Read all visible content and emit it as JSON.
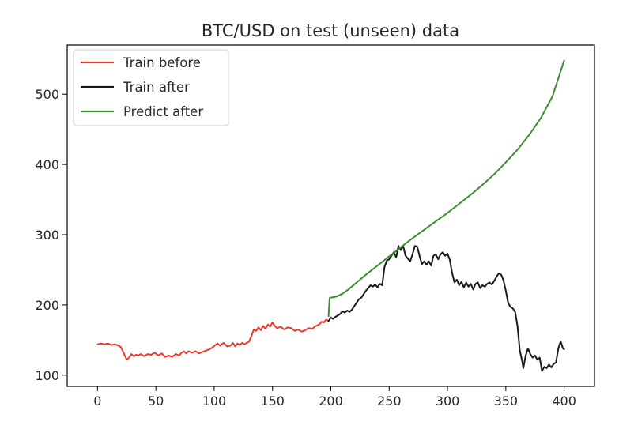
{
  "chart_data": {
    "type": "line",
    "title": "BTC/USD on test (unseen) data",
    "xlabel": "",
    "ylabel": "",
    "xlim": [
      -26,
      426
    ],
    "ylim": [
      84,
      570
    ],
    "grid": false,
    "legend_position": "top-left",
    "x_ticks": [
      0,
      50,
      100,
      150,
      200,
      250,
      300,
      350,
      400
    ],
    "y_ticks": [
      100,
      200,
      300,
      400,
      500
    ],
    "series": [
      {
        "name": "Train before",
        "color": "#e8392d",
        "points": [
          [
            0,
            144
          ],
          [
            3,
            145
          ],
          [
            6,
            144
          ],
          [
            9,
            145
          ],
          [
            12,
            143
          ],
          [
            15,
            144
          ],
          [
            18,
            142
          ],
          [
            20,
            140
          ],
          [
            22,
            133
          ],
          [
            24,
            126
          ],
          [
            25,
            122
          ],
          [
            27,
            125
          ],
          [
            29,
            130
          ],
          [
            31,
            127
          ],
          [
            33,
            129
          ],
          [
            35,
            128
          ],
          [
            37,
            130
          ],
          [
            40,
            127
          ],
          [
            43,
            130
          ],
          [
            46,
            129
          ],
          [
            49,
            132
          ],
          [
            52,
            128
          ],
          [
            55,
            131
          ],
          [
            58,
            126
          ],
          [
            61,
            128
          ],
          [
            64,
            126
          ],
          [
            67,
            130
          ],
          [
            70,
            128
          ],
          [
            72,
            132
          ],
          [
            74,
            134
          ],
          [
            76,
            131
          ],
          [
            78,
            134
          ],
          [
            81,
            132
          ],
          [
            84,
            134
          ],
          [
            87,
            131
          ],
          [
            90,
            133
          ],
          [
            93,
            135
          ],
          [
            96,
            137
          ],
          [
            99,
            140
          ],
          [
            101,
            143
          ],
          [
            103,
            145
          ],
          [
            105,
            142
          ],
          [
            108,
            146
          ],
          [
            111,
            141
          ],
          [
            114,
            142
          ],
          [
            116,
            146
          ],
          [
            118,
            141
          ],
          [
            120,
            145
          ],
          [
            122,
            143
          ],
          [
            124,
            146
          ],
          [
            126,
            144
          ],
          [
            128,
            146
          ],
          [
            130,
            148
          ],
          [
            132,
            156
          ],
          [
            134,
            165
          ],
          [
            136,
            163
          ],
          [
            138,
            168
          ],
          [
            140,
            164
          ],
          [
            142,
            170
          ],
          [
            144,
            166
          ],
          [
            146,
            172
          ],
          [
            148,
            169
          ],
          [
            150,
            175
          ],
          [
            152,
            170
          ],
          [
            154,
            167
          ],
          [
            157,
            169
          ],
          [
            160,
            165
          ],
          [
            163,
            168
          ],
          [
            166,
            167
          ],
          [
            169,
            163
          ],
          [
            172,
            165
          ],
          [
            175,
            162
          ],
          [
            178,
            164
          ],
          [
            181,
            167
          ],
          [
            184,
            166
          ],
          [
            187,
            170
          ],
          [
            190,
            172
          ],
          [
            192,
            176
          ],
          [
            194,
            175
          ],
          [
            196,
            179
          ],
          [
            198,
            177
          ]
        ]
      },
      {
        "name": "Train after",
        "color": "#1a1a1a",
        "points": [
          [
            198,
            177
          ],
          [
            200,
            182
          ],
          [
            202,
            180
          ],
          [
            204,
            183
          ],
          [
            206,
            185
          ],
          [
            208,
            187
          ],
          [
            210,
            191
          ],
          [
            212,
            189
          ],
          [
            214,
            192
          ],
          [
            216,
            190
          ],
          [
            218,
            193
          ],
          [
            220,
            198
          ],
          [
            222,
            203
          ],
          [
            224,
            208
          ],
          [
            226,
            210
          ],
          [
            228,
            215
          ],
          [
            230,
            220
          ],
          [
            232,
            224
          ],
          [
            234,
            228
          ],
          [
            236,
            226
          ],
          [
            238,
            229
          ],
          [
            240,
            225
          ],
          [
            242,
            230
          ],
          [
            244,
            228
          ],
          [
            246,
            254
          ],
          [
            248,
            263
          ],
          [
            250,
            265
          ],
          [
            252,
            270
          ],
          [
            254,
            275
          ],
          [
            256,
            268
          ],
          [
            258,
            284
          ],
          [
            260,
            278
          ],
          [
            262,
            284
          ],
          [
            264,
            270
          ],
          [
            266,
            266
          ],
          [
            268,
            262
          ],
          [
            270,
            272
          ],
          [
            272,
            284
          ],
          [
            274,
            283
          ],
          [
            276,
            270
          ],
          [
            278,
            258
          ],
          [
            280,
            262
          ],
          [
            282,
            257
          ],
          [
            284,
            262
          ],
          [
            286,
            256
          ],
          [
            288,
            270
          ],
          [
            290,
            272
          ],
          [
            292,
            265
          ],
          [
            294,
            272
          ],
          [
            296,
            275
          ],
          [
            298,
            270
          ],
          [
            300,
            273
          ],
          [
            302,
            264
          ],
          [
            304,
            245
          ],
          [
            306,
            232
          ],
          [
            308,
            236
          ],
          [
            310,
            228
          ],
          [
            312,
            233
          ],
          [
            314,
            225
          ],
          [
            316,
            232
          ],
          [
            318,
            226
          ],
          [
            320,
            230
          ],
          [
            322,
            222
          ],
          [
            324,
            230
          ],
          [
            326,
            232
          ],
          [
            328,
            224
          ],
          [
            330,
            228
          ],
          [
            332,
            226
          ],
          [
            334,
            230
          ],
          [
            336,
            232
          ],
          [
            338,
            229
          ],
          [
            340,
            234
          ],
          [
            342,
            240
          ],
          [
            344,
            245
          ],
          [
            346,
            243
          ],
          [
            348,
            235
          ],
          [
            350,
            220
          ],
          [
            352,
            203
          ],
          [
            354,
            197
          ],
          [
            356,
            195
          ],
          [
            358,
            190
          ],
          [
            360,
            170
          ],
          [
            362,
            135
          ],
          [
            364,
            120
          ],
          [
            365,
            110
          ],
          [
            367,
            128
          ],
          [
            369,
            138
          ],
          [
            371,
            130
          ],
          [
            373,
            125
          ],
          [
            375,
            128
          ],
          [
            377,
            122
          ],
          [
            379,
            125
          ],
          [
            381,
            106
          ],
          [
            383,
            112
          ],
          [
            385,
            110
          ],
          [
            387,
            115
          ],
          [
            389,
            111
          ],
          [
            391,
            116
          ],
          [
            393,
            118
          ],
          [
            395,
            138
          ],
          [
            397,
            148
          ],
          [
            399,
            138
          ],
          [
            400,
            137
          ]
        ]
      },
      {
        "name": "Predict after",
        "color": "#3d8c32",
        "points": [
          [
            198,
            184
          ],
          [
            199,
            210
          ],
          [
            205,
            212
          ],
          [
            210,
            216
          ],
          [
            215,
            222
          ],
          [
            220,
            229
          ],
          [
            230,
            243
          ],
          [
            240,
            256
          ],
          [
            250,
            269
          ],
          [
            260,
            282
          ],
          [
            270,
            295
          ],
          [
            280,
            307
          ],
          [
            290,
            319
          ],
          [
            300,
            331
          ],
          [
            310,
            344
          ],
          [
            320,
            357
          ],
          [
            330,
            371
          ],
          [
            340,
            386
          ],
          [
            350,
            403
          ],
          [
            360,
            421
          ],
          [
            370,
            442
          ],
          [
            380,
            466
          ],
          [
            390,
            497
          ],
          [
            400,
            548
          ]
        ]
      }
    ]
  }
}
